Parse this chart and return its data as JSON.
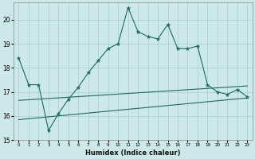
{
  "xlabel": "Humidex (Indice chaleur)",
  "background_color": "#cce8e8",
  "grid_color": "#aacccc",
  "line_color": "#1a6b5a",
  "x_values": [
    0,
    1,
    2,
    3,
    4,
    5,
    6,
    7,
    8,
    9,
    10,
    11,
    12,
    13,
    14,
    15,
    16,
    17,
    18,
    19,
    20,
    21,
    22,
    23
  ],
  "line1": [
    18.4,
    17.3,
    17.3,
    15.4,
    16.1,
    16.7,
    17.2,
    17.8,
    18.3,
    18.8,
    19.0,
    20.5,
    19.5,
    19.3,
    19.2,
    19.8,
    18.8,
    18.8,
    18.9,
    17.3,
    17.0,
    16.9,
    17.1,
    16.8
  ],
  "line3": [
    16.65,
    17.25
  ],
  "line4": [
    15.85,
    16.75
  ],
  "ylim": [
    15,
    20.7
  ],
  "xlim": [
    -0.5,
    23.5
  ],
  "yticks": [
    15,
    16,
    17,
    18,
    19,
    20
  ],
  "xticks": [
    0,
    1,
    2,
    3,
    4,
    5,
    6,
    7,
    8,
    9,
    10,
    11,
    12,
    13,
    14,
    15,
    16,
    17,
    18,
    19,
    20,
    21,
    22,
    23
  ]
}
